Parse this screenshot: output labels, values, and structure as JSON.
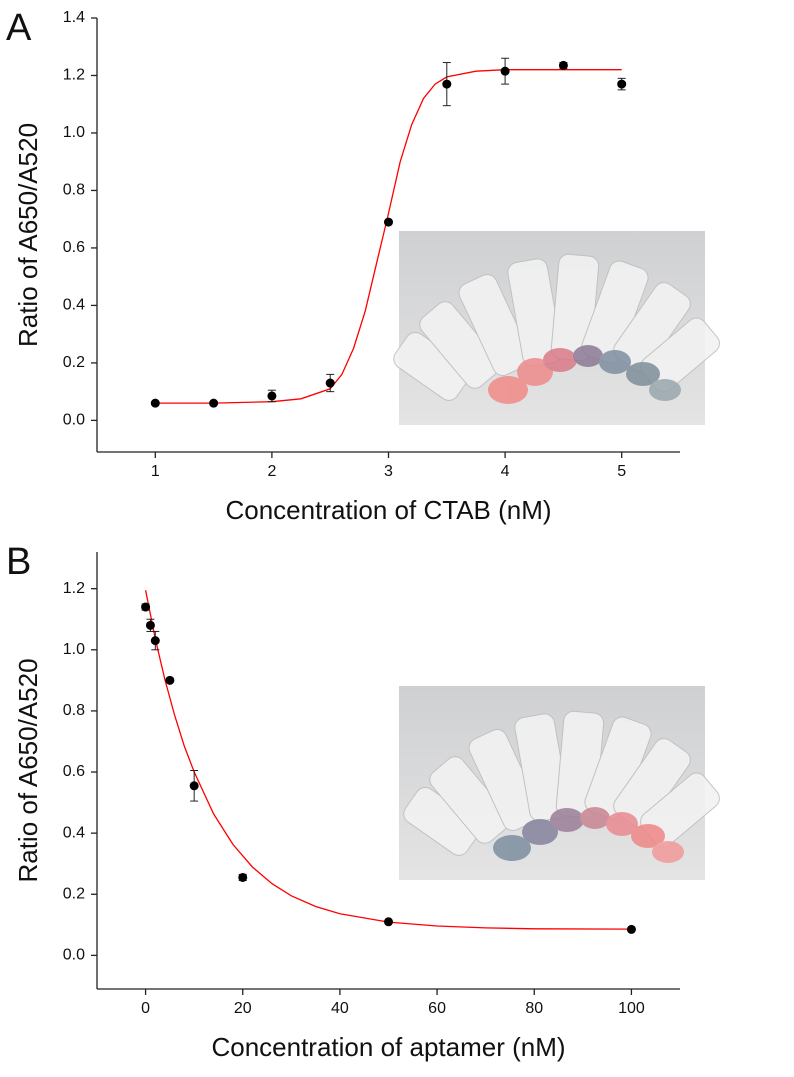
{
  "chart_data": [
    {
      "type": "scatter",
      "panel": "A",
      "x_label": "Concentration of CTAB (nM)",
      "y_label": "Ratio of A650/A520",
      "x": [
        1,
        1.5,
        2,
        2.5,
        3,
        3.5,
        4,
        4.5,
        5
      ],
      "values": [
        0.06,
        0.06,
        0.085,
        0.13,
        0.69,
        1.17,
        1.215,
        1.235,
        1.17
      ],
      "errors": [
        0.005,
        0.005,
        0.02,
        0.03,
        0.005,
        0.075,
        0.045,
        0.01,
        0.02
      ],
      "color": "#000000",
      "fit": {
        "color": "#ff0000",
        "x": [
          1,
          1.5,
          2,
          2.25,
          2.5,
          2.6,
          2.7,
          2.8,
          2.9,
          3.0,
          3.1,
          3.2,
          3.3,
          3.4,
          3.5,
          3.75,
          4,
          4.5,
          5
        ],
        "values": [
          0.06,
          0.06,
          0.065,
          0.075,
          0.11,
          0.16,
          0.25,
          0.38,
          0.55,
          0.72,
          0.9,
          1.03,
          1.12,
          1.17,
          1.195,
          1.215,
          1.22,
          1.22,
          1.22
        ]
      },
      "xlim": [
        0.5,
        5.5
      ],
      "xticks": [
        1,
        2,
        3,
        4,
        5
      ],
      "ylim": [
        -0.11,
        1.4
      ],
      "yticks": [
        {
          "value": 0,
          "label": "0.0"
        },
        0.2,
        0.4,
        0.6,
        0.8,
        {
          "value": 1,
          "label": "1.0"
        },
        1.2,
        1.4
      ]
    },
    {
      "type": "scatter",
      "panel": "B",
      "x_label": "Concentration of aptamer (nM)",
      "y_label": "Ratio of A650/A520",
      "x": [
        0,
        1,
        2,
        5,
        10,
        20,
        50,
        100
      ],
      "values": [
        1.14,
        1.08,
        1.03,
        0.9,
        0.555,
        0.255,
        0.11,
        0.085
      ],
      "errors": [
        0.01,
        0.02,
        0.03,
        0.005,
        0.05,
        0.01,
        0.005,
        0.005
      ],
      "color": "#000000",
      "fit": {
        "color": "#ff0000",
        "x": [
          0,
          2,
          4,
          6,
          8,
          10,
          14,
          18,
          22,
          26,
          30,
          35,
          40,
          50,
          60,
          70,
          80,
          100
        ],
        "values": [
          1.195,
          1.036,
          0.901,
          0.785,
          0.684,
          0.6,
          0.463,
          0.363,
          0.289,
          0.235,
          0.195,
          0.16,
          0.136,
          0.109,
          0.096,
          0.09,
          0.087,
          0.086
        ]
      },
      "xlim": [
        -10,
        110
      ],
      "xticks": [
        0,
        20,
        40,
        60,
        80,
        100
      ],
      "ylim": [
        -0.11,
        1.32
      ],
      "yticks": [
        {
          "value": 0,
          "label": "0.0"
        },
        0.2,
        0.4,
        0.6,
        0.8,
        {
          "value": 1,
          "label": "1.0"
        },
        1.2
      ]
    }
  ]
}
